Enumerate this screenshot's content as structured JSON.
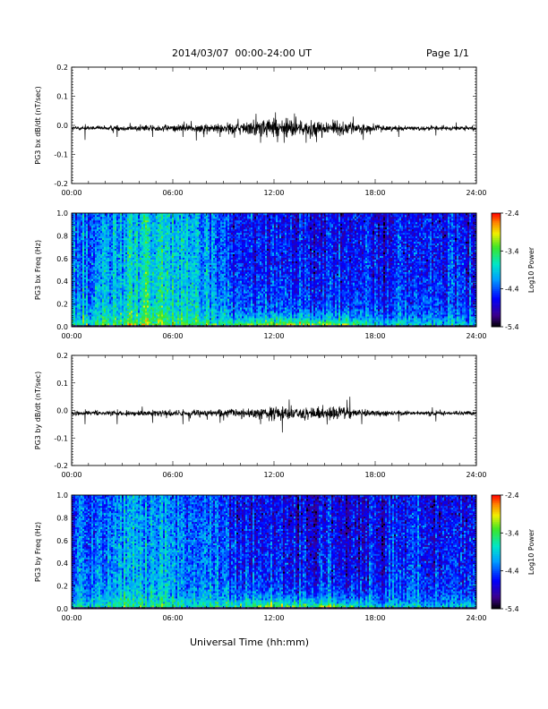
{
  "header": {
    "title": "2014/03/07  00:00-24:00 UT",
    "page": "Page 1/1"
  },
  "footer": {
    "xlabel": "Universal Time (hh:mm)"
  },
  "chart_data": [
    {
      "type": "line",
      "ylabel": "PG3 bx dB/dt (nT/sec)",
      "xlim": [
        0,
        24
      ],
      "ylim": [
        -0.2,
        0.2
      ],
      "yticks": [
        "0.2",
        "0.1",
        "0.0",
        "-0.1",
        "-0.2"
      ],
      "xticks": [
        "00:00",
        "06:00",
        "12:00",
        "18:00",
        "24:00"
      ],
      "series": [
        {
          "baseline": -0.01,
          "noise_amplitude": [
            [
              0,
              0.004
            ],
            [
              4,
              0.005
            ],
            [
              8,
              0.008
            ],
            [
              10,
              0.012
            ],
            [
              12,
              0.018
            ],
            [
              14,
              0.015
            ],
            [
              16,
              0.013
            ],
            [
              18,
              0.006
            ],
            [
              20,
              0.004
            ],
            [
              24,
              0.004
            ]
          ],
          "spikes": [
            [
              0.8,
              -0.04
            ],
            [
              2.7,
              -0.03
            ],
            [
              4.8,
              -0.03
            ],
            [
              6.6,
              -0.03
            ],
            [
              7.1,
              0.025
            ],
            [
              8.8,
              -0.03
            ],
            [
              10.4,
              0.02
            ],
            [
              11.2,
              -0.05
            ],
            [
              11.7,
              0.03
            ],
            [
              12.6,
              -0.05
            ],
            [
              13.3,
              0.04
            ],
            [
              13.9,
              -0.05
            ],
            [
              15.5,
              0.03
            ],
            [
              16.7,
              0.04
            ],
            [
              17.3,
              -0.04
            ],
            [
              19.4,
              -0.03
            ],
            [
              21.6,
              -0.025
            ],
            [
              22.8,
              0.02
            ]
          ]
        }
      ]
    },
    {
      "type": "heatmap",
      "ylabel": "PG3 bx Freq (Hz)",
      "xlim": [
        0,
        24
      ],
      "ylim": [
        0,
        1.0
      ],
      "yticks": [
        "1.0",
        "0.8",
        "0.6",
        "0.4",
        "0.2",
        "0.0"
      ],
      "xticks": [
        "00:00",
        "06:00",
        "12:00",
        "18:00",
        "24:00"
      ],
      "colorbar": {
        "label": "Log10 Power",
        "min": -5.4,
        "max": -2.4,
        "ticks": [
          "-2.4",
          "-3.4",
          "-4.4",
          "-5.4"
        ]
      },
      "background_power": [
        [
          0,
          -4.4
        ],
        [
          2,
          -4.2
        ],
        [
          4,
          -3.8
        ],
        [
          6,
          -3.9
        ],
        [
          8,
          -4.1
        ],
        [
          10,
          -4.5
        ],
        [
          12,
          -4.5
        ],
        [
          16,
          -4.7
        ],
        [
          20,
          -4.6
        ],
        [
          24,
          -4.6
        ]
      ],
      "low_freq_power": [
        [
          0,
          -3.6
        ],
        [
          4,
          -3.2
        ],
        [
          8,
          -3.4
        ],
        [
          10,
          -3.1
        ],
        [
          12,
          -2.7
        ],
        [
          14,
          -2.8
        ],
        [
          16,
          -3.0
        ],
        [
          18,
          -3.6
        ],
        [
          24,
          -3.8
        ]
      ]
    },
    {
      "type": "line",
      "ylabel": "PG3 by dB/dt (nT/sec)",
      "xlim": [
        0,
        24
      ],
      "ylim": [
        -0.2,
        0.2
      ],
      "yticks": [
        "0.2",
        "0.1",
        "0.0",
        "-0.1",
        "-0.2"
      ],
      "xticks": [
        "00:00",
        "06:00",
        "12:00",
        "18:00",
        "24:00"
      ],
      "series": [
        {
          "baseline": -0.01,
          "noise_amplitude": [
            [
              0,
              0.004
            ],
            [
              4,
              0.005
            ],
            [
              8,
              0.007
            ],
            [
              10,
              0.009
            ],
            [
              12,
              0.013
            ],
            [
              14,
              0.012
            ],
            [
              16,
              0.011
            ],
            [
              18,
              0.005
            ],
            [
              20,
              0.004
            ],
            [
              24,
              0.004
            ]
          ],
          "spikes": [
            [
              0.8,
              -0.04
            ],
            [
              2.7,
              -0.04
            ],
            [
              4.8,
              -0.035
            ],
            [
              6.6,
              -0.04
            ],
            [
              8.8,
              -0.035
            ],
            [
              11.2,
              -0.04
            ],
            [
              12.5,
              -0.07
            ],
            [
              12.9,
              0.05
            ],
            [
              14.9,
              0.03
            ],
            [
              16.5,
              0.06
            ],
            [
              17.2,
              -0.04
            ],
            [
              19.4,
              -0.03
            ],
            [
              21.6,
              -0.03
            ]
          ]
        }
      ]
    },
    {
      "type": "heatmap",
      "ylabel": "PG3 by Freq (Hz)",
      "xlim": [
        0,
        24
      ],
      "ylim": [
        0,
        1.0
      ],
      "yticks": [
        "1.0",
        "0.8",
        "0.6",
        "0.4",
        "0.2",
        "0.0"
      ],
      "xticks": [
        "00:00",
        "06:00",
        "12:00",
        "18:00",
        "24:00"
      ],
      "colorbar": {
        "label": "Log10 Power",
        "min": -5.4,
        "max": -2.4,
        "ticks": [
          "-2.4",
          "-3.4",
          "-4.4",
          "-5.4"
        ]
      },
      "background_power": [
        [
          0,
          -4.4
        ],
        [
          2,
          -4.3
        ],
        [
          4,
          -4.0
        ],
        [
          6,
          -4.2
        ],
        [
          8,
          -4.3
        ],
        [
          10,
          -4.5
        ],
        [
          12,
          -4.6
        ],
        [
          16,
          -4.7
        ],
        [
          20,
          -4.6
        ],
        [
          24,
          -4.6
        ]
      ],
      "low_freq_power": [
        [
          0,
          -3.7
        ],
        [
          4,
          -3.4
        ],
        [
          8,
          -3.5
        ],
        [
          10,
          -3.2
        ],
        [
          12,
          -2.8
        ],
        [
          14,
          -2.9
        ],
        [
          16,
          -3.1
        ],
        [
          18,
          -3.7
        ],
        [
          24,
          -3.9
        ]
      ]
    }
  ]
}
